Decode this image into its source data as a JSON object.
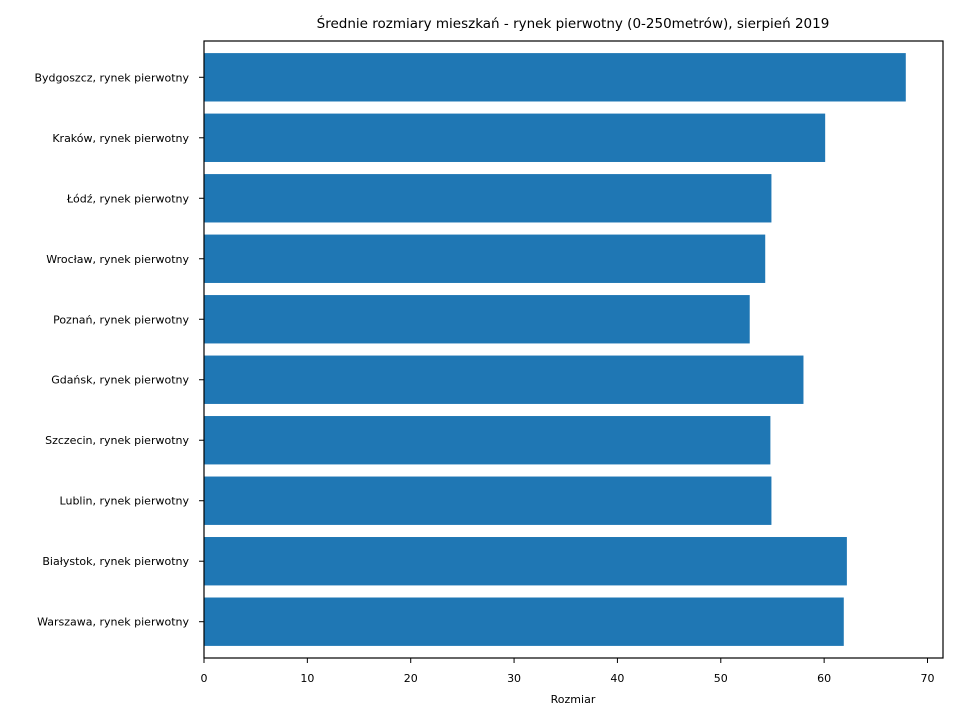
{
  "chart_data": {
    "type": "bar",
    "orientation": "horizontal",
    "title": "Średnie rozmiary mieszkań - rynek pierwotny (0-250metrów), sierpień 2019",
    "xlabel": "Rozmiar",
    "ylabel": "",
    "xlim": [
      0,
      71.5
    ],
    "xticks": [
      0,
      10,
      20,
      30,
      40,
      50,
      60,
      70
    ],
    "grid": false,
    "bar_color": "#1f77b4",
    "categories": [
      "Bydgoszcz, rynek pierwotny",
      "Kraków, rynek pierwotny",
      "Łódź, rynek pierwotny",
      "Wrocław, rynek pierwotny",
      "Poznań, rynek pierwotny",
      "Gdańsk, rynek pierwotny",
      "Szczecin, rynek pierwotny",
      "Lublin, rynek pierwotny",
      "Białystok, rynek pierwotny",
      "Warszawa, rynek pierwotny"
    ],
    "values": [
      67.9,
      60.1,
      54.9,
      54.3,
      52.8,
      58.0,
      54.8,
      54.9,
      62.2,
      61.9
    ]
  }
}
